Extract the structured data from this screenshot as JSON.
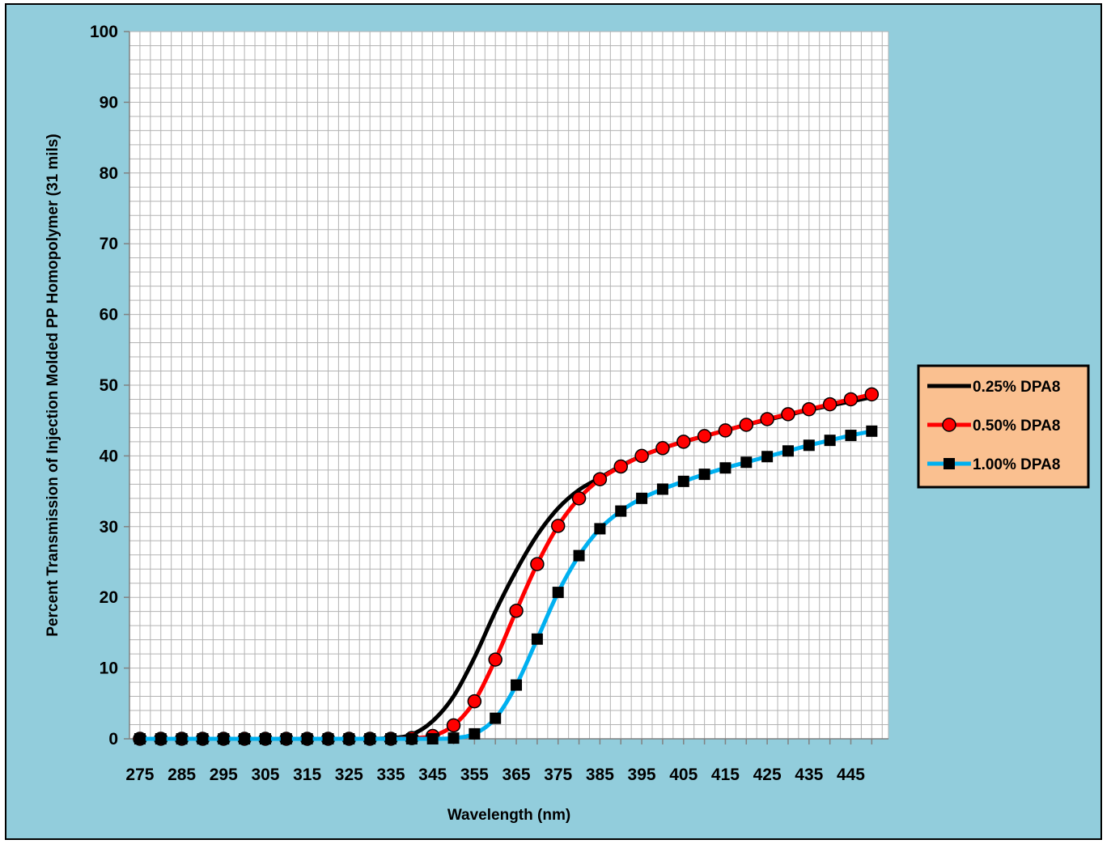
{
  "chart_data": {
    "type": "line",
    "title": "",
    "xlabel": "Wavelength (nm)",
    "ylabel": "Percent Transmission of Injection Molded PP Homopolymer (31 mils)",
    "xlim": [
      272.5,
      454
    ],
    "ylim": [
      0,
      100
    ],
    "x_tick_labels": [
      "275",
      "285",
      "295",
      "305",
      "315",
      "325",
      "335",
      "345",
      "355",
      "365",
      "375",
      "385",
      "395",
      "405",
      "415",
      "425",
      "435",
      "445"
    ],
    "y_tick_labels": [
      "0",
      "10",
      "20",
      "30",
      "40",
      "50",
      "60",
      "70",
      "80",
      "90",
      "100"
    ],
    "grid": true,
    "legend_position": "right",
    "x": [
      275,
      280,
      285,
      290,
      295,
      300,
      305,
      310,
      315,
      320,
      325,
      330,
      335,
      340,
      345,
      350,
      355,
      360,
      365,
      370,
      375,
      380,
      385,
      390,
      395,
      400,
      405,
      410,
      415,
      420,
      425,
      430,
      435,
      440,
      445,
      450
    ],
    "series": [
      {
        "name": "0.25% DPA8",
        "color": "#000000",
        "marker": "none",
        "values": [
          0,
          0,
          0,
          0,
          0,
          0,
          0,
          0,
          0,
          0,
          0,
          0,
          0.1,
          0.6,
          2.5,
          6,
          11.5,
          18,
          23.8,
          28.8,
          32.6,
          35.2,
          36.9,
          38.6,
          40,
          41.1,
          42,
          42.8,
          43.6,
          44.4,
          45.1,
          45.8,
          46.5,
          47.1,
          47.7,
          48.3
        ]
      },
      {
        "name": "0.50% DPA8",
        "color": "#ff0000",
        "marker": "circle",
        "values": [
          0,
          0,
          0,
          0,
          0,
          0,
          0,
          0,
          0,
          0,
          0,
          0,
          0,
          0.1,
          0.4,
          1.9,
          5.3,
          11.2,
          18.1,
          24.7,
          30.1,
          34,
          36.7,
          38.5,
          40,
          41.1,
          42,
          42.8,
          43.6,
          44.4,
          45.2,
          45.9,
          46.6,
          47.3,
          48,
          48.7
        ]
      },
      {
        "name": "1.00% DPA8",
        "color": "#00b0f0",
        "marker": "square",
        "values": [
          0,
          0,
          0,
          0,
          0,
          0,
          0,
          0,
          0,
          0,
          0,
          0,
          0,
          0,
          0,
          0.1,
          0.7,
          2.9,
          7.6,
          14.1,
          20.7,
          25.9,
          29.7,
          32.2,
          34,
          35.3,
          36.4,
          37.4,
          38.3,
          39.1,
          39.9,
          40.7,
          41.5,
          42.2,
          42.9,
          43.5
        ]
      }
    ]
  }
}
